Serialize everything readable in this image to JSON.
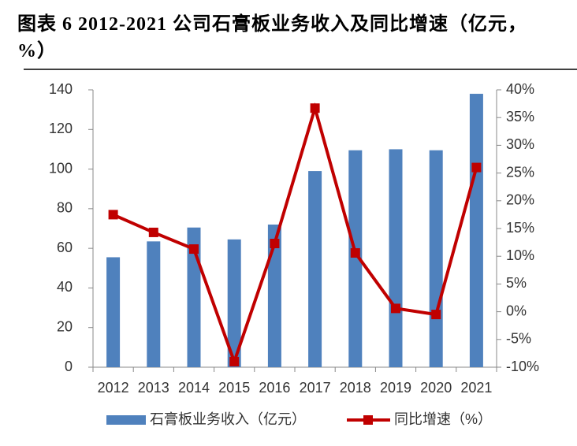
{
  "chart_data": {
    "type": "bar-line",
    "title": "图表 6 2012-2021 公司石膏板业务收入及同比增速（亿元，%）",
    "categories": [
      "2012",
      "2013",
      "2014",
      "2015",
      "2016",
      "2017",
      "2018",
      "2019",
      "2020",
      "2021"
    ],
    "series": [
      {
        "name": "石膏板业务收入（亿元）",
        "type": "bar",
        "color": "#4f81bd",
        "values": [
          55.5,
          63.5,
          70.5,
          64.5,
          72,
          99,
          109.5,
          110,
          109.5,
          138
        ]
      },
      {
        "name": "同比增速（%）",
        "type": "line",
        "axis": "y2",
        "color": "#c00000",
        "values": [
          17.5,
          14.3,
          11.3,
          -9,
          12.3,
          36.7,
          10.6,
          0.6,
          -0.5,
          26
        ]
      }
    ],
    "ylim": [
      0,
      140
    ],
    "yticks": [
      0,
      20,
      40,
      60,
      80,
      100,
      120,
      140
    ],
    "y2lim": [
      -10,
      40
    ],
    "y2ticks": [
      {
        "value": -10,
        "label": "-10%"
      },
      {
        "value": -5,
        "label": "-5%"
      },
      {
        "value": 0,
        "label": "0%"
      },
      {
        "value": 5,
        "label": "5%"
      },
      {
        "value": 10,
        "label": "10%"
      },
      {
        "value": 15,
        "label": "15%"
      },
      {
        "value": 20,
        "label": "20%"
      },
      {
        "value": 25,
        "label": "25%"
      },
      {
        "value": 30,
        "label": "30%"
      },
      {
        "value": 35,
        "label": "35%"
      },
      {
        "value": 40,
        "label": "40%"
      }
    ]
  }
}
